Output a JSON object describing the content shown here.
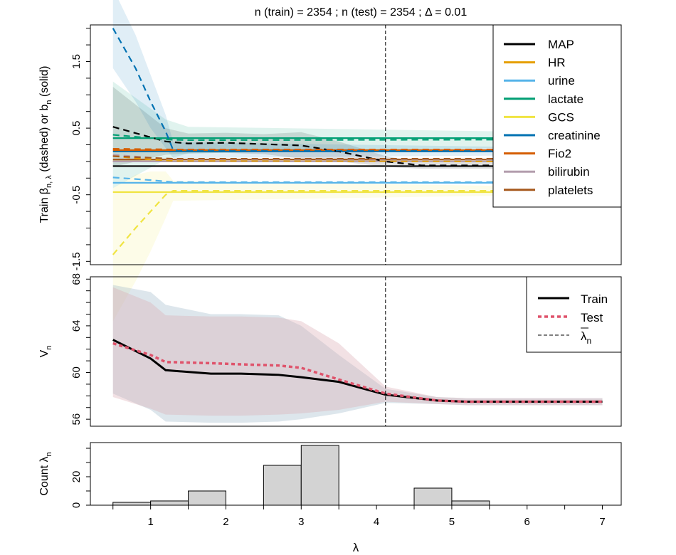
{
  "chart_data": [
    {
      "panel": "coefficients",
      "type": "line",
      "title": "n (train) = 2354 ;  n (test) = 2354 ;  Δ = 0.01",
      "title_parts": [
        "n (train) = 2354 ;  n (test) = 2354 ;  ",
        "Δ",
        " = 0.01"
      ],
      "ylabel": "Train β_{n, λ} (dashed) or b_n (solid)",
      "ylabel_parts": [
        "Train ",
        "β",
        "n, λ",
        " (dashed) or ",
        "b",
        "n",
        " (solid)"
      ],
      "xlim": [
        0.2,
        7.25
      ],
      "ylim": [
        -1.55,
        2.05
      ],
      "yticks": [
        -1.5,
        -0.5,
        0.5,
        1.5
      ],
      "ytick_labels": [
        "-1.5",
        "-0.5",
        "0.5",
        "1.5"
      ],
      "vline": 4.12,
      "legend_position": "top-right",
      "series": [
        {
          "name": "MAP",
          "color": "#000000",
          "solid": -0.07,
          "dashed_x": [
            0.5,
            1.2,
            1.5,
            2.0,
            2.5,
            3.0,
            3.5,
            4.12,
            4.6,
            5.0,
            7.0
          ],
          "dashed": [
            0.52,
            0.3,
            0.27,
            0.28,
            0.26,
            0.24,
            0.15,
            0.0,
            -0.06,
            -0.06,
            -0.06
          ],
          "band": [
            0.6,
            0.2,
            0.15,
            0.15,
            0.15,
            0.2,
            0.15,
            0.08,
            0.05,
            0.05,
            0.05
          ]
        },
        {
          "name": "HR",
          "color": "#E69F00",
          "solid": 0.0,
          "dashed_x": [
            0.5,
            1.0,
            1.3,
            7.0
          ],
          "dashed": [
            0.08,
            0.03,
            0.01,
            0.0
          ]
        },
        {
          "name": "urine",
          "color": "#56B4E9",
          "solid": -0.32,
          "dashed_x": [
            0.5,
            1.0,
            1.3,
            7.0
          ],
          "dashed": [
            -0.24,
            -0.28,
            -0.31,
            -0.31
          ]
        },
        {
          "name": "lactate",
          "color": "#009E73",
          "solid": 0.35,
          "dashed_x": [
            0.5,
            1.2,
            1.5,
            7.0
          ],
          "dashed": [
            0.4,
            0.33,
            0.32,
            0.33
          ],
          "band": [
            0.8,
            0.3,
            0.2,
            0.1
          ]
        },
        {
          "name": "GCS",
          "color": "#F0E442",
          "solid": -0.46,
          "dashed_x": [
            0.5,
            0.8,
            1.0,
            1.2,
            1.3,
            7.0
          ],
          "dashed": [
            -1.4,
            -1.0,
            -0.75,
            -0.5,
            -0.44,
            -0.44
          ],
          "band": [
            1.0,
            0.8,
            0.6,
            0.35,
            0.15,
            0.05
          ]
        },
        {
          "name": "creatinine",
          "color": "#0072B2",
          "solid": 0.15,
          "dashed_x": [
            0.5,
            0.8,
            1.0,
            1.2,
            1.3,
            7.0
          ],
          "dashed": [
            2.0,
            1.4,
            0.9,
            0.45,
            0.17,
            0.15
          ],
          "band": [
            0.6,
            0.5,
            0.4,
            0.25,
            0.12,
            0.05
          ]
        },
        {
          "name": "Fio2",
          "color": "#D55E00",
          "solid": 0.17,
          "dashed_x": [
            0.5,
            1.3,
            7.0
          ],
          "dashed": [
            0.19,
            0.18,
            0.18
          ]
        },
        {
          "name": "bilirubin",
          "color": "#B39DAD",
          "solid": 0.0,
          "dashed_x": [
            0.5,
            1.3,
            7.0
          ],
          "dashed": [
            0.1,
            0.03,
            0.02
          ]
        },
        {
          "name": "platelets",
          "color": "#A6581C",
          "solid": 0.03,
          "dashed_x": [
            0.5,
            1.3,
            7.0
          ],
          "dashed": [
            0.08,
            0.04,
            0.04
          ]
        }
      ]
    },
    {
      "panel": "value",
      "type": "line",
      "ylabel": "V_n",
      "ylabel_parts": [
        "V",
        "n"
      ],
      "xlim": [
        0.2,
        7.25
      ],
      "ylim": [
        55.4,
        68.2
      ],
      "yticks": [
        56,
        60,
        64,
        68
      ],
      "ytick_labels": [
        "56",
        "60",
        "64",
        "68"
      ],
      "vline": 4.12,
      "legend_position": "top-right",
      "legend": [
        "Train",
        "Test",
        "λn"
      ],
      "legend_last_parts": [
        "λ",
        "n"
      ],
      "x": [
        0.5,
        1.0,
        1.2,
        1.8,
        2.2,
        2.7,
        3.0,
        3.5,
        4.12,
        4.8,
        5.2,
        7.0
      ],
      "series": [
        {
          "name": "Train",
          "color": "#000000",
          "values": [
            62.8,
            61.2,
            60.2,
            59.9,
            59.9,
            59.8,
            59.6,
            59.2,
            58.1,
            57.6,
            57.5,
            57.5
          ],
          "band_hi": [
            67.5,
            66.9,
            65.8,
            65.0,
            65.0,
            64.9,
            64.0,
            61.5,
            58.6,
            57.9,
            57.8,
            57.8
          ],
          "band_lo": [
            58.2,
            56.8,
            55.8,
            55.7,
            55.7,
            55.8,
            56.0,
            56.5,
            57.4,
            57.3,
            57.2,
            57.2
          ]
        },
        {
          "name": "Test",
          "color": "#DF536B",
          "values": [
            62.5,
            61.5,
            60.9,
            60.8,
            60.7,
            60.6,
            60.4,
            59.4,
            58.2,
            57.6,
            57.5,
            57.5
          ],
          "band_hi": [
            67.3,
            66.0,
            64.9,
            64.8,
            64.8,
            64.7,
            64.4,
            62.5,
            58.8,
            57.9,
            57.8,
            57.8
          ],
          "band_lo": [
            57.9,
            56.9,
            56.4,
            56.3,
            56.3,
            56.4,
            56.5,
            56.8,
            57.5,
            57.3,
            57.2,
            57.2
          ]
        }
      ]
    },
    {
      "panel": "histogram",
      "type": "bar",
      "ylabel": "Count λ_n",
      "ylabel_parts": [
        "Count ",
        "λ",
        "n"
      ],
      "xlabel": "λ",
      "xlim": [
        0.2,
        7.25
      ],
      "ylim": [
        0,
        44
      ],
      "yticks": [
        0,
        20
      ],
      "ytick_labels": [
        "0",
        "20"
      ],
      "xticks": [
        1,
        2,
        3,
        4,
        5,
        6,
        7
      ],
      "xtick_labels": [
        "1",
        "2",
        "3",
        "4",
        "5",
        "6",
        "7"
      ],
      "bins": [
        0.5,
        1.0,
        1.5,
        2.0,
        2.5,
        3.0,
        3.5,
        4.0,
        4.5,
        5.0,
        5.5,
        6.0,
        6.5,
        7.0
      ],
      "counts": [
        2,
        3,
        10,
        0,
        28,
        42,
        0,
        0,
        12,
        3,
        0,
        0,
        0
      ],
      "bar_color": "#D3D3D3"
    }
  ]
}
